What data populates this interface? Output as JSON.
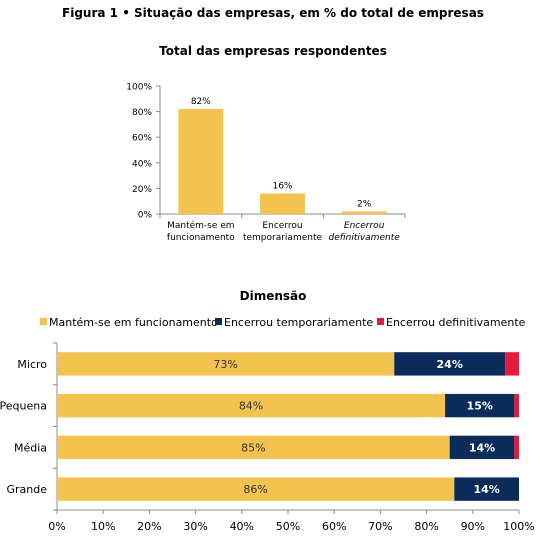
{
  "figure_title": "Figura 1 • Situação das empresas, em % do total de empresas",
  "colors": {
    "keep": "#F2C44E",
    "temp": "#0B2C5A",
    "def": "#E8193C",
    "axis": "#8c8c8c"
  },
  "chart_data": [
    {
      "type": "bar",
      "title": "Total das empresas respondentes",
      "categories": [
        [
          "Mantém-se em",
          "funcionamento"
        ],
        [
          "Encerrou",
          "temporariamente"
        ],
        [
          "Encerrou",
          "definitivamente"
        ]
      ],
      "values": [
        82,
        16,
        2
      ],
      "value_labels": [
        "82%",
        "16%",
        "2%"
      ],
      "ylim": [
        0,
        100
      ],
      "yticks": [
        "0%",
        "20%",
        "40%",
        "60%",
        "80%",
        "100%"
      ],
      "grid": false
    },
    {
      "type": "bar",
      "orientation": "horizontal",
      "stacked": true,
      "title": "Dimensão",
      "categories": [
        "Micro",
        "Pequena",
        "Média",
        "Grande"
      ],
      "series": [
        {
          "name": "Mantém-se em funcionamento",
          "values": [
            73,
            84,
            85,
            86
          ],
          "labels": [
            "73%",
            "84%",
            "85%",
            "86%"
          ]
        },
        {
          "name": "Encerrou temporariamente",
          "values": [
            24,
            15,
            14,
            14
          ],
          "labels": [
            "24%",
            "15%",
            "14%",
            "14%"
          ]
        },
        {
          "name": "Encerrou definitivamente",
          "values": [
            3,
            1,
            1,
            0.5
          ],
          "labels": [
            "",
            "",
            "",
            ""
          ]
        }
      ],
      "xlim": [
        0,
        100
      ],
      "xticks": [
        "0%",
        "10%",
        "20%",
        "30%",
        "40%",
        "50%",
        "60%",
        "70%",
        "80%",
        "90%",
        "100%"
      ],
      "legend": "top",
      "grid": false
    }
  ]
}
